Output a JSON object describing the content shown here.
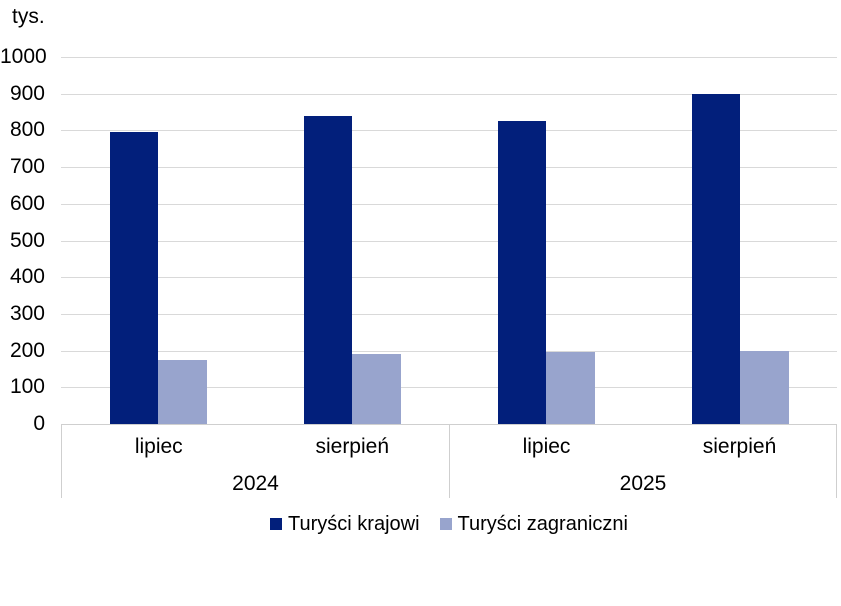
{
  "chart_data": {
    "type": "bar",
    "title": "",
    "ylabel": "tys.",
    "ylim": [
      0,
      1000
    ],
    "yticks": [
      0,
      100,
      200,
      300,
      400,
      500,
      600,
      700,
      800,
      900,
      1000
    ],
    "grid": true,
    "gridline_color": "#d9d9d9",
    "axis_border_color": "#cfcfcf",
    "legend_position": "bottom",
    "group_labels": [
      {
        "year": "2024",
        "months": [
          "lipiec",
          "sierpień"
        ]
      },
      {
        "year": "2025",
        "months": [
          "lipiec",
          "sierpień"
        ]
      }
    ],
    "categories": [
      "lipiec 2024",
      "sierpień 2024",
      "lipiec 2025",
      "sierpień 2025"
    ],
    "series": [
      {
        "name": "Turyści krajowi",
        "color": "#021f7b",
        "values": [
          795,
          840,
          825,
          900
        ]
      },
      {
        "name": "Turyści zagraniczni",
        "color": "#98a4cd",
        "values": [
          175,
          190,
          195,
          200
        ]
      }
    ]
  }
}
